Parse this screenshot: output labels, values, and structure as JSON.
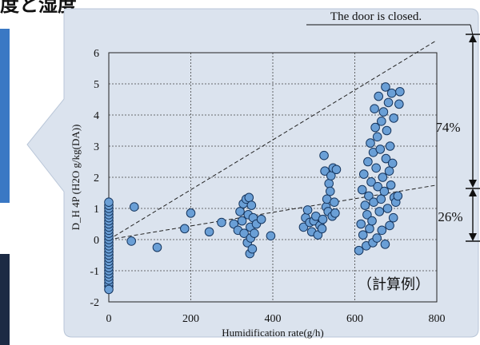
{
  "slide": {
    "title_fragment": "度と湿度"
  },
  "annotations": {
    "door_label": "The door is closed.",
    "upper_percent": "74%",
    "lower_percent": "26%",
    "example_label": "（計算例）"
  },
  "colors": {
    "panel": "#dbe3ee",
    "point_fill": "#6a9fd6",
    "point_stroke": "#16365f",
    "accent_blue": "#3a78c4",
    "accent_dark": "#1c2a44"
  },
  "chart_data": {
    "type": "scatter",
    "title": "",
    "xlabel": "Humidification rate(g/h)",
    "ylabel": "D_H 4P (H2O g/kg(DA))",
    "xlim": [
      0,
      800
    ],
    "ylim": [
      -2,
      6
    ],
    "xticks": [
      0,
      200,
      400,
      600,
      800
    ],
    "yticks": [
      -2,
      -1,
      0,
      1,
      2,
      3,
      4,
      5,
      6
    ],
    "grid": true,
    "legend": "none",
    "lines": [
      {
        "name": "",
        "style": "dashed",
        "points": [
          [
            0,
            0
          ],
          [
            800,
            6.4
          ]
        ]
      },
      {
        "name": "",
        "style": "dashed",
        "points": [
          [
            0,
            0
          ],
          [
            800,
            1.75
          ]
        ]
      }
    ],
    "points": [
      [
        0,
        -1.5
      ],
      [
        0,
        -1.4
      ],
      [
        0,
        -1.3
      ],
      [
        0,
        -1.2
      ],
      [
        0,
        -1.1
      ],
      [
        0,
        -1.0
      ],
      [
        0,
        -0.9
      ],
      [
        0,
        -0.8
      ],
      [
        0,
        -0.7
      ],
      [
        0,
        -0.6
      ],
      [
        0,
        -0.5
      ],
      [
        0,
        -0.4
      ],
      [
        0,
        -0.3
      ],
      [
        0,
        -0.2
      ],
      [
        0,
        -0.1
      ],
      [
        0,
        0.0
      ],
      [
        0,
        0.1
      ],
      [
        0,
        0.2
      ],
      [
        0,
        0.3
      ],
      [
        0,
        0.4
      ],
      [
        0,
        0.5
      ],
      [
        0,
        0.6
      ],
      [
        0,
        0.7
      ],
      [
        0,
        0.8
      ],
      [
        0,
        0.9
      ],
      [
        0,
        1.0
      ],
      [
        0,
        1.1
      ],
      [
        0,
        1.2
      ],
      [
        0,
        -1.6
      ],
      [
        55,
        -0.05
      ],
      [
        62,
        1.05
      ],
      [
        118,
        -0.25
      ],
      [
        185,
        0.35
      ],
      [
        200,
        0.85
      ],
      [
        245,
        0.25
      ],
      [
        275,
        0.55
      ],
      [
        305,
        0.5
      ],
      [
        315,
        0.3
      ],
      [
        320,
        0.9
      ],
      [
        325,
        0.6
      ],
      [
        328,
        1.15
      ],
      [
        330,
        0.2
      ],
      [
        335,
        1.3
      ],
      [
        338,
        -0.1
      ],
      [
        340,
        0.8
      ],
      [
        342,
        1.35
      ],
      [
        344,
        -0.45
      ],
      [
        345,
        0.4
      ],
      [
        346,
        0.05
      ],
      [
        348,
        1.1
      ],
      [
        350,
        -0.3
      ],
      [
        352,
        0.7
      ],
      [
        355,
        0.2
      ],
      [
        360,
        0.5
      ],
      [
        372,
        0.65
      ],
      [
        395,
        0.12
      ],
      [
        475,
        0.4
      ],
      [
        480,
        0.7
      ],
      [
        485,
        0.95
      ],
      [
        490,
        0.55
      ],
      [
        495,
        0.25
      ],
      [
        500,
        0.6
      ],
      [
        505,
        0.75
      ],
      [
        510,
        0.15
      ],
      [
        515,
        0.45
      ],
      [
        520,
        0.35
      ],
      [
        522,
        0.65
      ],
      [
        525,
        2.7
      ],
      [
        527,
        2.2
      ],
      [
        530,
        1.05
      ],
      [
        532,
        1.3
      ],
      [
        535,
        0.9
      ],
      [
        537,
        1.8
      ],
      [
        540,
        1.55
      ],
      [
        542,
        2.05
      ],
      [
        545,
        0.75
      ],
      [
        547,
        2.3
      ],
      [
        550,
        1.2
      ],
      [
        552,
        0.85
      ],
      [
        555,
        2.25
      ],
      [
        610,
        -0.35
      ],
      [
        615,
        0.5
      ],
      [
        618,
        1.6
      ],
      [
        620,
        0.15
      ],
      [
        622,
        2.1
      ],
      [
        625,
        1.1
      ],
      [
        628,
        -0.2
      ],
      [
        630,
        0.8
      ],
      [
        632,
        2.5
      ],
      [
        634,
        1.4
      ],
      [
        636,
        0.35
      ],
      [
        638,
        3.1
      ],
      [
        640,
        1.85
      ],
      [
        642,
        0.6
      ],
      [
        644,
        -0.1
      ],
      [
        645,
        2.8
      ],
      [
        646,
        1.2
      ],
      [
        648,
        4.2
      ],
      [
        650,
        3.6
      ],
      [
        652,
        2.3
      ],
      [
        654,
        0.05
      ],
      [
        655,
        3.3
      ],
      [
        656,
        1.7
      ],
      [
        658,
        4.6
      ],
      [
        660,
        0.9
      ],
      [
        662,
        2.9
      ],
      [
        664,
        1.3
      ],
      [
        665,
        3.8
      ],
      [
        666,
        0.3
      ],
      [
        668,
        2.0
      ],
      [
        670,
        4.1
      ],
      [
        672,
        1.55
      ],
      [
        674,
        -0.15
      ],
      [
        675,
        4.9
      ],
      [
        676,
        2.6
      ],
      [
        678,
        3.5
      ],
      [
        680,
        1.0
      ],
      [
        682,
        4.4
      ],
      [
        684,
        2.2
      ],
      [
        685,
        0.45
      ],
      [
        686,
        3.0
      ],
      [
        688,
        1.75
      ],
      [
        690,
        4.7
      ],
      [
        692,
        2.45
      ],
      [
        694,
        0.7
      ],
      [
        695,
        3.9
      ],
      [
        696,
        1.35
      ],
      [
        700,
        1.2
      ],
      [
        705,
        1.4
      ],
      [
        708,
        4.35
      ],
      [
        710,
        4.75
      ]
    ]
  }
}
